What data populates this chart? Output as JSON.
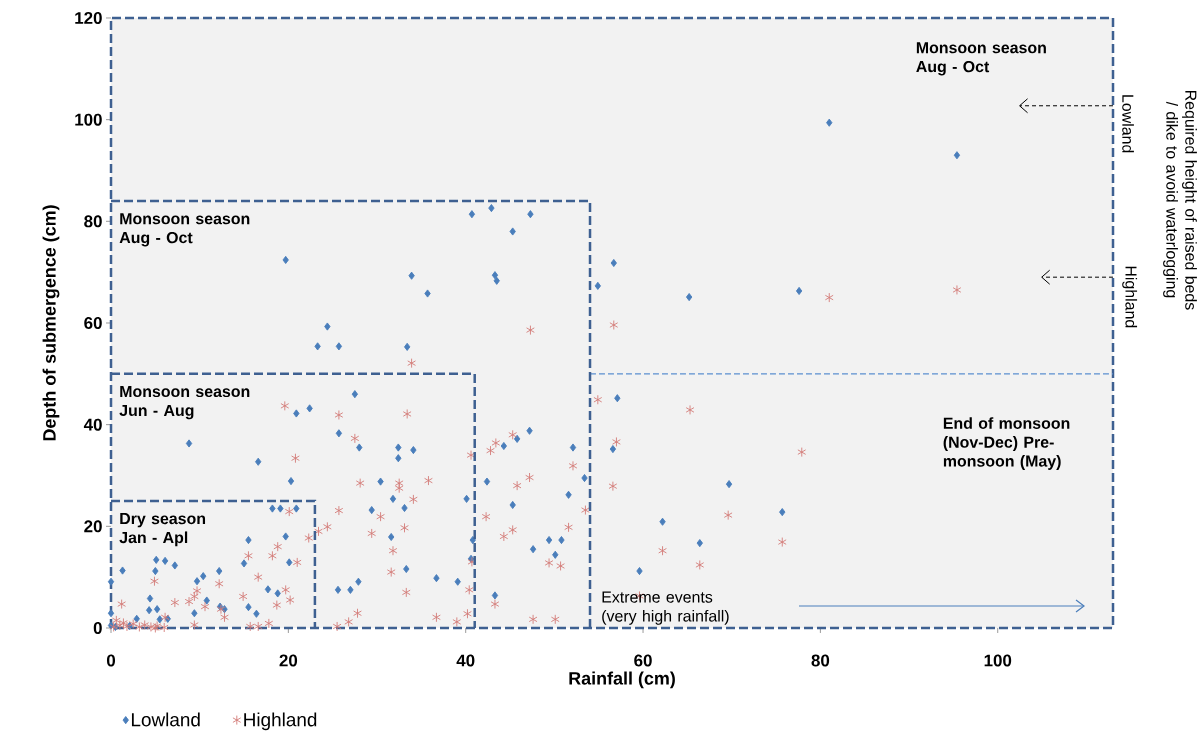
{
  "chart_data": {
    "type": "scatter",
    "xlabel": "Rainfall (cm)",
    "ylabel": "Depth of submergence (cm)",
    "xlim": [
      0,
      113
    ],
    "ylim": [
      0,
      120
    ],
    "xticks": [
      0,
      20,
      40,
      60,
      80,
      100
    ],
    "yticks": [
      0,
      20,
      40,
      60,
      80,
      100,
      120
    ],
    "legend": "bottom",
    "series": [
      {
        "name": "Lowland",
        "color": "#4a7ebb",
        "marker": "diamond",
        "x": [
          81.0,
          95.4,
          56.7,
          54.9,
          65.2,
          77.6,
          57.1,
          56.6,
          53.4,
          69.7,
          75.7,
          62.2,
          66.4,
          59.6,
          33.9,
          35.7,
          43.3,
          43.5,
          24.4,
          23.3,
          25.7,
          33.4,
          27.5,
          25.7,
          28.0,
          32.4,
          34.1,
          32.4,
          30.4,
          31.8,
          29.4,
          33.1,
          31.6,
          33.3,
          25.6,
          27.0,
          27.9,
          36.7,
          39.1,
          40.1,
          40.8,
          40.6,
          42.4,
          44.3,
          45.8,
          47.2,
          45.3,
          52.1,
          51.6,
          47.6,
          49.4,
          50.8,
          50.1,
          43.3,
          19.7,
          40.7,
          42.9,
          47.3,
          45.3,
          22.4,
          20.9,
          8.8,
          16.6,
          20.3,
          18.2,
          19.1,
          20.9,
          19.7,
          15.5,
          20.1,
          15.0,
          12.2,
          5.1,
          6.1,
          7.2,
          1.3,
          5.0,
          0.0,
          9.7,
          10.4,
          4.4,
          10.8,
          17.7,
          18.8,
          4.3,
          5.2,
          12.3,
          12.8,
          15.5,
          16.4,
          9.4,
          5.5,
          2.9,
          6.4,
          0.0,
          0.0,
          0.5,
          2.1
        ],
        "values": [
          99.4,
          93.0,
          71.8,
          67.3,
          65.1,
          66.3,
          45.2,
          35.2,
          29.5,
          28.3,
          22.8,
          20.9,
          16.7,
          11.2,
          69.3,
          65.8,
          69.4,
          68.3,
          59.3,
          55.4,
          55.4,
          55.3,
          46.0,
          38.3,
          35.5,
          35.5,
          35.0,
          33.4,
          28.8,
          25.4,
          23.2,
          23.6,
          17.9,
          11.6,
          7.5,
          7.5,
          9.1,
          9.8,
          9.1,
          25.4,
          17.3,
          13.6,
          28.8,
          35.8,
          37.2,
          38.8,
          24.2,
          35.5,
          26.2,
          15.5,
          17.3,
          17.3,
          14.4,
          6.4,
          72.4,
          81.4,
          82.6,
          81.4,
          78.0,
          43.2,
          42.2,
          36.3,
          32.7,
          28.9,
          23.5,
          23.5,
          23.5,
          18.0,
          17.3,
          12.9,
          12.7,
          11.2,
          13.4,
          13.2,
          12.3,
          11.3,
          11.2,
          9.1,
          9.2,
          10.2,
          5.8,
          5.4,
          7.6,
          6.8,
          3.5,
          3.7,
          4.2,
          3.7,
          4.1,
          2.8,
          2.9,
          1.7,
          1.8,
          1.8,
          2.9,
          0.5,
          0.2,
          0.4
        ]
      },
      {
        "name": "Highland",
        "color": "#d47c78",
        "marker": "cross",
        "x": [
          81.0,
          95.4,
          56.7,
          54.9,
          65.3,
          57.0,
          77.9,
          56.6,
          53.5,
          69.6,
          75.7,
          62.2,
          66.4,
          59.6,
          47.3,
          33.9,
          25.7,
          33.4,
          27.5,
          40.6,
          42.8,
          43.4,
          45.3,
          28.1,
          32.5,
          32.5,
          35.8,
          34.1,
          25.7,
          30.4,
          29.4,
          33.1,
          31.8,
          31.6,
          33.3,
          47.2,
          45.8,
          52.1,
          51.6,
          42.3,
          44.3,
          45.3,
          49.4,
          50.7,
          40.7,
          40.4,
          43.3,
          27.8,
          26.8,
          25.5,
          36.7,
          39.0,
          40.2,
          47.6,
          50.1,
          19.6,
          20.8,
          20.1,
          24.4,
          23.4,
          22.3,
          18.8,
          18.2,
          15.5,
          21.0,
          16.6,
          12.2,
          4.9,
          19.7,
          20.2,
          18.7,
          14.9,
          9.7,
          9.4,
          8.8,
          7.2,
          10.6,
          1.2,
          12.4,
          6.1,
          12.8,
          15.7,
          16.6,
          17.8,
          9.4,
          0.3,
          1.0,
          1.8,
          2.5,
          3.2,
          3.8,
          4.5,
          5.2,
          6.0,
          0.6,
          1.4,
          5.0
        ],
        "values": [
          65.0,
          66.5,
          59.6,
          44.9,
          42.9,
          36.6,
          34.6,
          27.9,
          23.2,
          22.2,
          16.9,
          15.2,
          12.4,
          6.3,
          58.6,
          52.1,
          41.9,
          42.1,
          37.3,
          34.0,
          34.9,
          36.4,
          38.0,
          28.5,
          28.5,
          27.5,
          29.0,
          25.3,
          23.1,
          21.9,
          18.6,
          19.7,
          15.2,
          11.0,
          7.0,
          29.6,
          28.0,
          31.9,
          19.8,
          21.9,
          18.0,
          19.3,
          12.8,
          12.2,
          13.0,
          7.5,
          4.7,
          2.9,
          1.2,
          0.3,
          2.1,
          1.2,
          2.8,
          1.7,
          1.7,
          43.7,
          33.4,
          22.9,
          19.9,
          19.0,
          17.7,
          16.0,
          14.2,
          14.2,
          12.9,
          10.0,
          8.7,
          9.2,
          7.5,
          5.5,
          4.5,
          6.2,
          7.3,
          6.2,
          5.2,
          5.0,
          4.2,
          4.7,
          3.7,
          2.1,
          2.1,
          0.3,
          0.3,
          0.9,
          0.6,
          0.2,
          0.5,
          0.3,
          0.8,
          0.2,
          0.6,
          0.2,
          0.4,
          0.1,
          1.5,
          1.0,
          0.0
        ]
      }
    ],
    "ref_lines": [
      {
        "axis": "y",
        "value": 50,
        "color": "#5b8fd0",
        "line_style": "dashed"
      }
    ],
    "annotations": [
      "Monsoon season Aug - Oct",
      "Monsoon season Aug - Oct",
      "Monsoon season Jun - Aug",
      "Dry season Jan - Apl",
      "End of monsoon (Nov-Dec) Pre-monsoon (May)",
      "Extreme events (very high rainfall)",
      "Required height of raised beds / dike to avoid waterlogging",
      "Lowland",
      "Highland"
    ]
  }
}
